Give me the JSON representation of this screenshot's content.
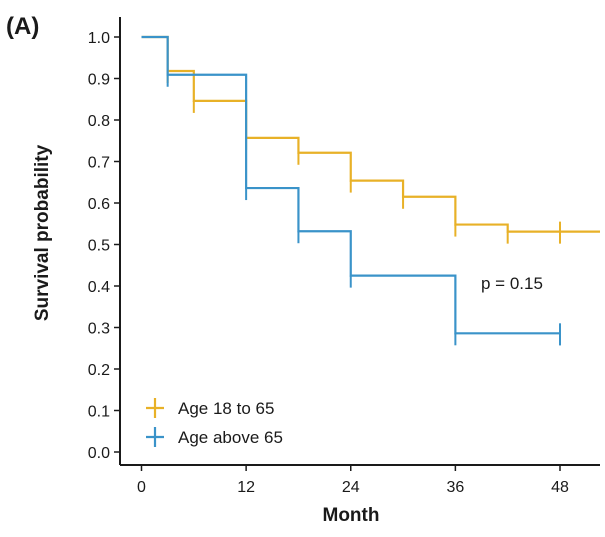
{
  "chart_data": {
    "type": "line",
    "panel_label": "(A)",
    "xlabel": "Month",
    "ylabel": "Survival probability",
    "xlim": [
      -4,
      53
    ],
    "ylim": [
      0,
      1.0
    ],
    "x_ticks": [
      0,
      12,
      24,
      36,
      48
    ],
    "y_ticks": [
      0.0,
      0.1,
      0.2,
      0.3,
      0.4,
      0.5,
      0.6,
      0.7,
      0.8,
      0.9,
      1.0
    ],
    "y_tick_labels": [
      "0.0",
      "0.1",
      "0.2",
      "0.3",
      "0.4",
      "0.5",
      "0.6",
      "0.7",
      "0.8",
      "0.9",
      "1.0"
    ],
    "annotation": "p = 0.15",
    "legend_position": "bottom-left",
    "series": [
      {
        "name": "Age 18 to 65",
        "color": "#E8B127",
        "steps": [
          {
            "x": 0,
            "y": 1.0
          },
          {
            "x": 3,
            "y": 0.918
          },
          {
            "x": 6,
            "y": 0.846
          },
          {
            "x": 12,
            "y": 0.757
          },
          {
            "x": 18,
            "y": 0.721
          },
          {
            "x": 24,
            "y": 0.654
          },
          {
            "x": 30,
            "y": 0.615
          },
          {
            "x": 36,
            "y": 0.548
          },
          {
            "x": 42,
            "y": 0.531
          },
          {
            "x": 53,
            "y": 0.531
          }
        ],
        "censor_x": [
          48
        ]
      },
      {
        "name": "Age above 65",
        "color": "#3A93C9",
        "steps": [
          {
            "x": 0,
            "y": 1.0
          },
          {
            "x": 3,
            "y": 0.909
          },
          {
            "x": 12,
            "y": 0.636
          },
          {
            "x": 18,
            "y": 0.532
          },
          {
            "x": 24,
            "y": 0.425
          },
          {
            "x": 36,
            "y": 0.286
          },
          {
            "x": 48,
            "y": 0.286
          }
        ],
        "censor_x": [
          48
        ]
      }
    ]
  }
}
